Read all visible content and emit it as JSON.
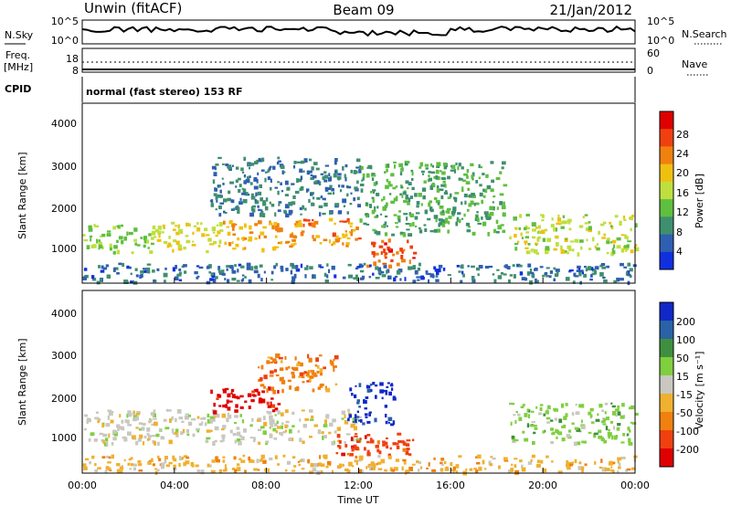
{
  "header": {
    "station": "Unwin (fitACF)",
    "beam": "Beam 09",
    "date": "21/Jan/2012"
  },
  "noise_panel": {
    "left_label": "N.Sky",
    "right_label": "N.Search",
    "left_ticks": [
      "10^5",
      "10^0"
    ],
    "right_ticks": [
      "10^5",
      "10^0"
    ]
  },
  "freq_panel": {
    "left_label_1": "Freq.",
    "left_label_2": "[MHz]",
    "right_label": "Nave",
    "left_ticks": [
      "18",
      "8"
    ],
    "right_ticks": [
      "60",
      "0"
    ]
  },
  "cpid_panel": {
    "label": "CPID",
    "text": "normal (fast stereo) 153 RF"
  },
  "time_axis": {
    "title": "Time UT",
    "ticks": [
      "00:00",
      "04:00",
      "08:00",
      "12:00",
      "16:00",
      "20:00",
      "00:00"
    ]
  },
  "power_panel": {
    "ylabel": "Slant Range [km]",
    "yticks": [
      "4000",
      "3000",
      "2000",
      "1000"
    ],
    "colorbar_label": "Power [dB]",
    "colorbar_ticks": [
      "28",
      "24",
      "20",
      "16",
      "12",
      "8",
      "4"
    ],
    "colors": [
      "#1030e0",
      "#2f5fb0",
      "#3f8f6f",
      "#5fbf3f",
      "#bfdf3f",
      "#f0c010",
      "#f08010",
      "#f04010",
      "#e00000"
    ]
  },
  "velocity_panel": {
    "ylabel": "Slant Range [km]",
    "yticks": [
      "4000",
      "3000",
      "2000",
      "1000"
    ],
    "colorbar_label": "Velocity [m s⁻¹]",
    "colorbar_ticks": [
      "200",
      "100",
      "50",
      "15",
      "-15",
      "-50",
      "-100",
      "-200"
    ],
    "colors": [
      "#1028c8",
      "#2a62a6",
      "#3f8f3f",
      "#7fcf3f",
      "#c8c8c0",
      "#f0b030",
      "#f08010",
      "#f04010",
      "#e00000"
    ]
  },
  "chart_data": [
    {
      "type": "heatmap",
      "title": "Power",
      "xlabel": "Time UT",
      "ylabel": "Slant Range [km]",
      "xlim": [
        0,
        24
      ],
      "ylim": [
        200,
        4600
      ],
      "colorbar": {
        "label": "Power [dB]",
        "range": [
          0,
          32
        ],
        "ticks": [
          4,
          8,
          12,
          16,
          20,
          24,
          28
        ]
      },
      "regions": [
        {
          "t0": 0.0,
          "t1": 3.0,
          "r_lo": 950,
          "r_hi": 1650,
          "value": 14
        },
        {
          "t0": 3.0,
          "t1": 6.0,
          "r_lo": 1000,
          "r_hi": 1700,
          "value": 18
        },
        {
          "t0": 6.0,
          "t1": 9.5,
          "r_lo": 1050,
          "r_hi": 1750,
          "value": 22
        },
        {
          "t0": 9.5,
          "t1": 12.0,
          "r_lo": 1150,
          "r_hi": 1800,
          "value": 24
        },
        {
          "t0": 12.3,
          "t1": 14.5,
          "r_lo": 650,
          "r_hi": 1300,
          "value": 28
        },
        {
          "t0": 5.5,
          "t1": 12.0,
          "r_lo": 1900,
          "r_hi": 3300,
          "value": 6
        },
        {
          "t0": 12.0,
          "t1": 18.3,
          "r_lo": 1400,
          "r_hi": 3200,
          "value": 10
        },
        {
          "t0": 18.5,
          "t1": 24.0,
          "r_lo": 950,
          "r_hi": 1900,
          "value": 16
        },
        {
          "t0": 0.0,
          "t1": 24.0,
          "r_lo": 250,
          "r_hi": 700,
          "value": 5
        }
      ]
    },
    {
      "type": "heatmap",
      "title": "Velocity",
      "xlabel": "Time UT",
      "ylabel": "Slant Range [km]",
      "xlim": [
        0,
        24
      ],
      "ylim": [
        200,
        4600
      ],
      "colorbar": {
        "label": "Velocity [m s⁻¹]",
        "ticks": [
          200,
          100,
          50,
          15,
          -15,
          -50,
          -100,
          -200
        ]
      },
      "regions": [
        {
          "t0": 0.0,
          "t1": 12.0,
          "r_lo": 950,
          "r_hi": 1750,
          "value": 0
        },
        {
          "t0": 5.5,
          "t1": 8.5,
          "r_lo": 1700,
          "r_hi": 2300,
          "value": -200
        },
        {
          "t0": 7.5,
          "t1": 11.0,
          "r_lo": 2200,
          "r_hi": 3100,
          "value": -60
        },
        {
          "t0": 11.5,
          "t1": 13.5,
          "r_lo": 1400,
          "r_hi": 2400,
          "value": 200
        },
        {
          "t0": 11.0,
          "t1": 14.5,
          "r_lo": 650,
          "r_hi": 1200,
          "value": -80
        },
        {
          "t0": 18.5,
          "t1": 24.0,
          "r_lo": 950,
          "r_hi": 1900,
          "value": 30
        },
        {
          "t0": 0.0,
          "t1": 24.0,
          "r_lo": 250,
          "r_hi": 650,
          "value": -20
        }
      ]
    }
  ]
}
